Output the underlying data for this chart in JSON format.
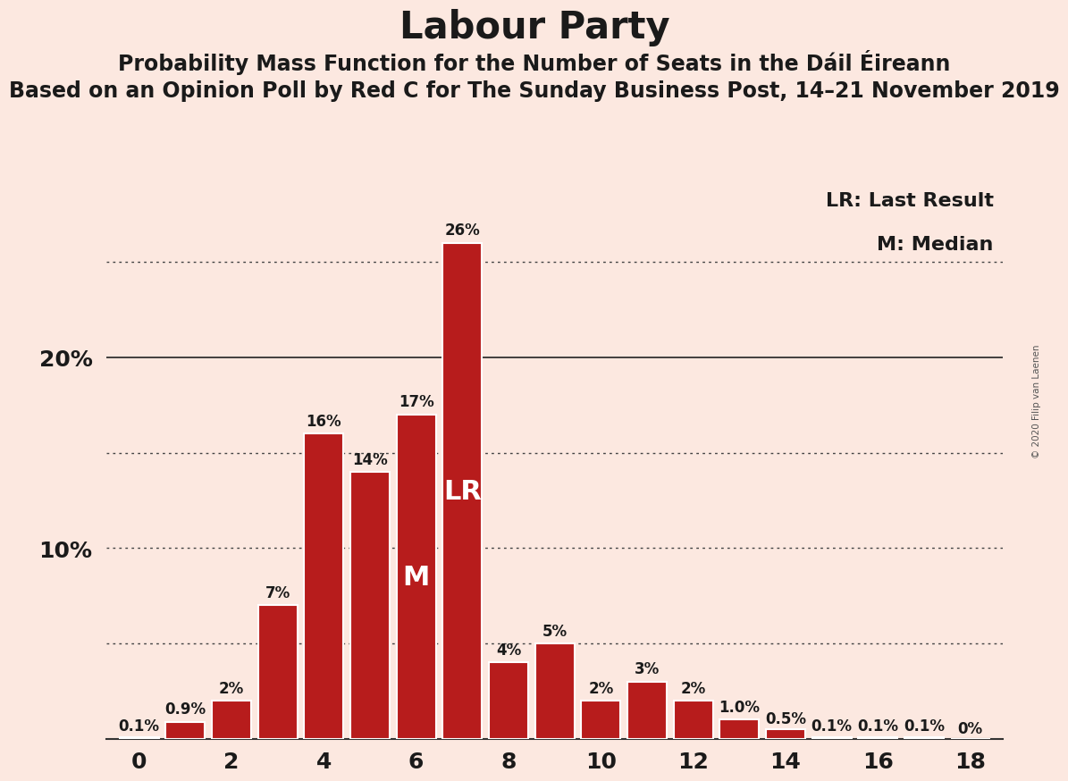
{
  "title": "Labour Party",
  "subtitle1": "Probability Mass Function for the Number of Seats in the Dáil Éireann",
  "subtitle2": "Based on an Opinion Poll by Red C for The Sunday Business Post, 14–21 November 2019",
  "copyright": "© 2020 Filip van Laenen",
  "seats": [
    0,
    1,
    2,
    3,
    4,
    5,
    6,
    7,
    8,
    9,
    10,
    11,
    12,
    13,
    14,
    15,
    16,
    17,
    18
  ],
  "probabilities": [
    0.1,
    0.9,
    2.0,
    7.0,
    16.0,
    14.0,
    17.0,
    26.0,
    4.0,
    5.0,
    2.0,
    3.0,
    2.0,
    1.0,
    0.5,
    0.1,
    0.1,
    0.1,
    0.0
  ],
  "labels": [
    "0.1%",
    "0.9%",
    "2%",
    "7%",
    "16%",
    "14%",
    "17%",
    "26%",
    "4%",
    "5%",
    "2%",
    "3%",
    "2%",
    "1.0%",
    "0.5%",
    "0.1%",
    "0.1%",
    "0.1%",
    "0%"
  ],
  "bar_color": "#b71c1c",
  "background_color": "#fce8e0",
  "median_seat": 6,
  "last_result_seat": 7,
  "legend_lr": "LR: Last Result",
  "legend_m": "M: Median",
  "dotted_lines": [
    5.0,
    10.0,
    15.0,
    25.0
  ],
  "solid_lines": [
    20.0
  ],
  "title_fontsize": 30,
  "subtitle1_fontsize": 17,
  "subtitle2_fontsize": 17,
  "bar_label_fontsize": 12,
  "legend_fontsize": 16,
  "annotation_fontsize": 22,
  "ytick_fontsize": 18,
  "xtick_fontsize": 18,
  "ytick_positions": [
    10,
    20
  ],
  "ytick_labels_left": [
    "10%",
    "20%"
  ]
}
